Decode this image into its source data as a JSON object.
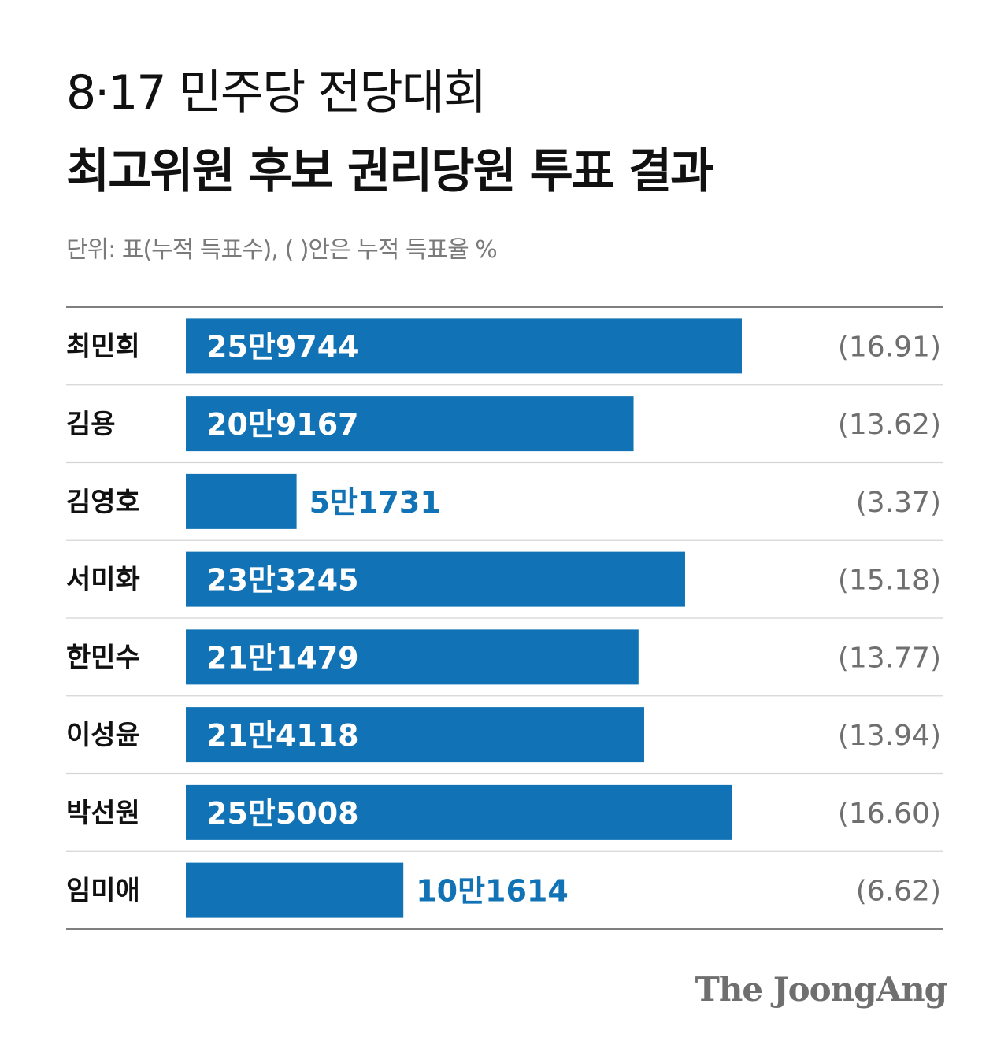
{
  "title_line1": "8·17 민주당 전당대회",
  "title_line2": "최고위원 후보 권리당원 투표 결과",
  "unit_note": "단위: 표(누적 득표수), ( )안은 누적 득표율 %",
  "logo": "The JoongAng",
  "colors": {
    "bar": "#1173b5",
    "rule": "#d4d4d4",
    "rule_strong": "#555555"
  },
  "chart_data": {
    "type": "bar",
    "orientation": "horizontal",
    "categories": [
      "최민희",
      "김용",
      "김영호",
      "서미화",
      "한민수",
      "이성윤",
      "박선원",
      "임미애"
    ],
    "values": [
      259744,
      209167,
      51731,
      233245,
      211479,
      214118,
      255008,
      101614
    ],
    "value_labels": [
      "25만9744",
      "20만9167",
      "5만1731",
      "23만3245",
      "21만1479",
      "21만4118",
      "25만5008",
      "10만1614"
    ],
    "percent_labels": [
      "(16.91)",
      "(13.62)",
      "(3.37)",
      "(15.18)",
      "(13.77)",
      "(13.94)",
      "(16.60)",
      "(6.62)"
    ],
    "percents": [
      16.91,
      13.62,
      3.37,
      15.18,
      13.77,
      13.94,
      16.6,
      6.62
    ],
    "xlabel": "",
    "ylabel": ""
  }
}
